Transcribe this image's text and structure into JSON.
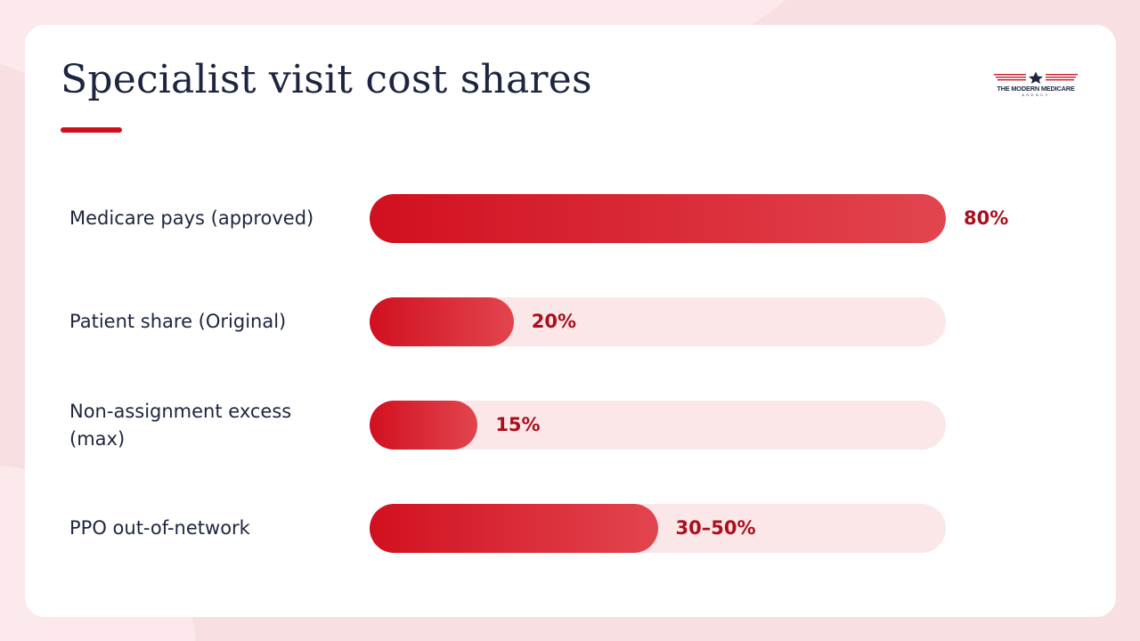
{
  "colors": {
    "accent": "#d1101f",
    "accent_light": "#e2454f",
    "track": "#fbe6e8",
    "value_text": "#a8101c",
    "title_text": "#1d2540"
  },
  "logo": {
    "name": "THE MODERN MEDICARE",
    "subtitle": "AGENCY",
    "icon": "star-stripes-icon"
  },
  "chart_data": {
    "type": "bar",
    "orientation": "horizontal",
    "title": "Specialist visit cost shares",
    "xlim": [
      0,
      100
    ],
    "categories": [
      "Medicare pays (approved)",
      "Patient share (Original)",
      "Non-assignment excess (max)",
      "PPO out-of-network"
    ],
    "values": [
      80,
      20,
      15,
      40
    ],
    "value_labels": [
      "80%",
      "20%",
      "15%",
      "30–50%"
    ],
    "grid": false,
    "legend": "none"
  }
}
